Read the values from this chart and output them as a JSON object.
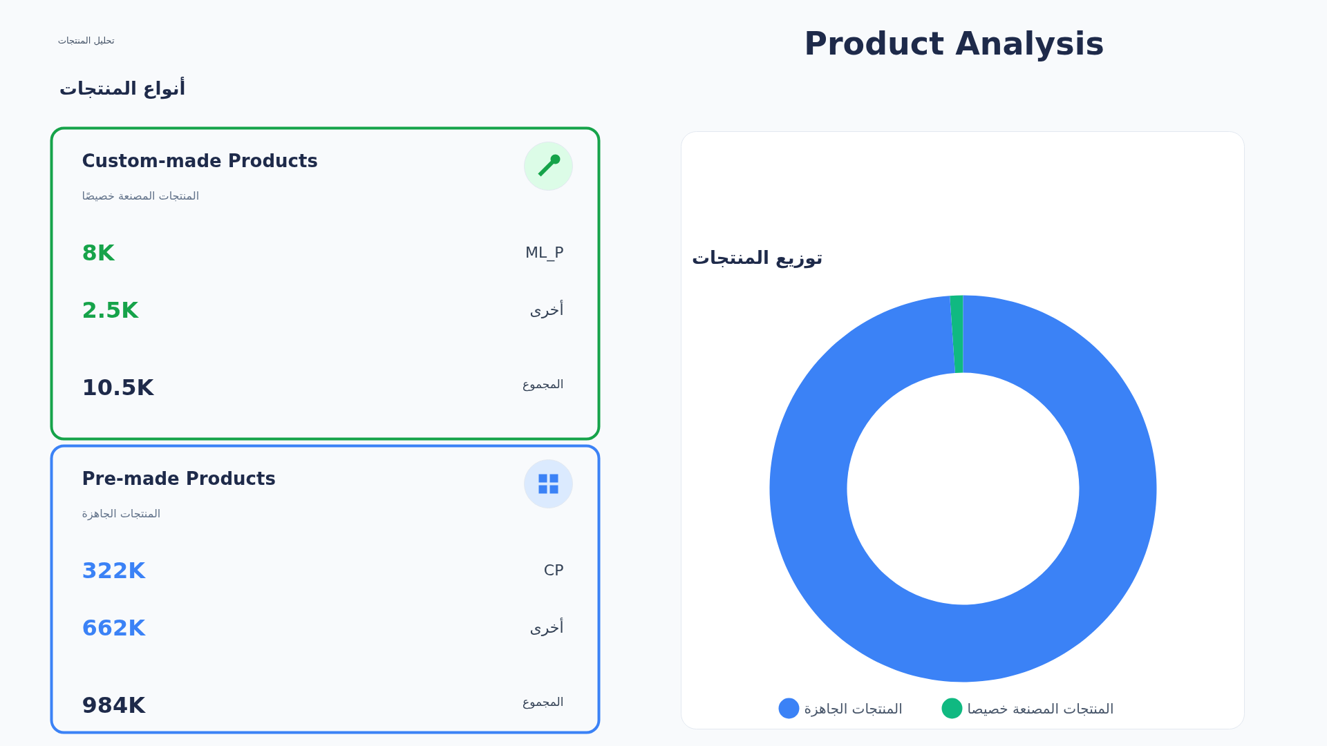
{
  "chart_data": [
    {
      "type": "other",
      "title": "Product Analysis",
      "annotations": [
        "تحليل المنتجات",
        "أنواع المنتجات"
      ]
    },
    {
      "type": "other",
      "title": "Custom-made Products",
      "subtitle": "المنتجات المصنعة خصيصًا",
      "color": "#16a34a",
      "categories": [
        "ML_P",
        "أخرى",
        "المجموع"
      ],
      "values": [
        8000,
        2500,
        10500
      ],
      "value_labels": [
        "8K",
        "2.5K",
        "10.5K"
      ]
    },
    {
      "type": "other",
      "title": "Pre-made Products",
      "subtitle": "المنتجات الجاهزة",
      "color": "#3b82f6",
      "categories": [
        "CP",
        "أخرى",
        "المجموع"
      ],
      "values": [
        322000,
        662000,
        984000
      ],
      "value_labels": [
        "322K",
        "662K",
        "984K"
      ]
    },
    {
      "type": "donut",
      "title": "توزيع المنتجات",
      "categories": [
        "المنتجات المصنعة خصيصا",
        "المنتجات الجاهزة"
      ],
      "values": [
        1.1,
        98.9
      ],
      "colors": [
        "#10b981",
        "#3b82f6"
      ],
      "legend": "bottom"
    }
  ]
}
